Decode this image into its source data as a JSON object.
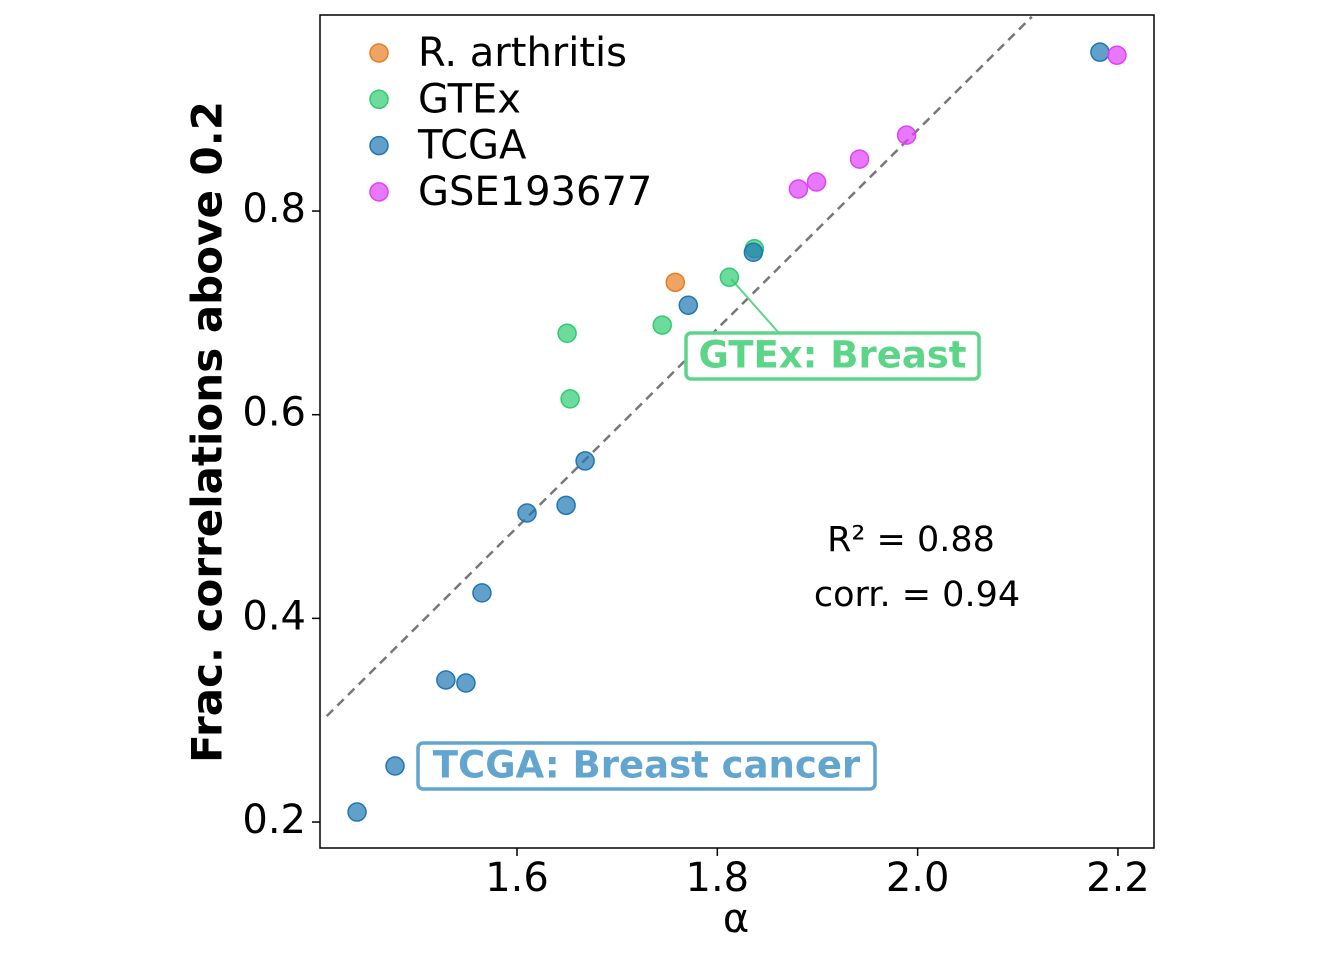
{
  "chart_data": {
    "type": "scatter",
    "xlabel": "α",
    "ylabel": "Frac. correlations above 0.2",
    "xlim": [
      1.4033,
      2.236
    ],
    "ylim": [
      0.1745,
      0.9925
    ],
    "xticks": [
      1.6,
      1.8,
      {
        "value": 2,
        "label": "2.0"
      },
      2.2
    ],
    "yticks": [
      0.2,
      0.4,
      0.6,
      0.8
    ],
    "legend": "upper left",
    "series": [
      {
        "name": "R. arthritis",
        "color": "#e67e22",
        "x": [
          1.758
        ],
        "values": [
          0.73
        ]
      },
      {
        "name": "GTEx",
        "color": "#2ecc71",
        "x": [
          1.65,
          1.653,
          1.745,
          1.812,
          1.837
        ],
        "values": [
          0.68,
          0.6155,
          0.688,
          0.735,
          0.763
        ]
      },
      {
        "name": "TCGA",
        "color": "#1f77b4",
        "x": [
          1.4403,
          1.4782,
          1.529,
          1.549,
          1.565,
          1.61,
          1.649,
          1.668,
          1.771,
          1.836,
          2.182
        ],
        "values": [
          0.2098,
          0.255,
          0.3395,
          0.3365,
          0.425,
          0.5035,
          0.511,
          0.5546,
          0.7075,
          0.7595,
          0.956
        ]
      },
      {
        "name": "GSE193677",
        "color": "#e040fb",
        "x": [
          1.881,
          1.899,
          1.942,
          1.989,
          2.199
        ],
        "values": [
          0.8216,
          0.8285,
          0.851,
          0.8745,
          0.953
        ]
      }
    ],
    "fit_line": {
      "x": [
        1.41,
        2.114
      ],
      "values": [
        0.304,
        0.9908
      ]
    },
    "annotations": [
      {
        "text": "GTEx: Breast",
        "color": "#5dd588"
      },
      {
        "text": "TCGA: Breast cancer",
        "color": "#62a5cf"
      }
    ],
    "stats": [
      "R² = 0.88",
      "corr. = 0.94"
    ]
  }
}
